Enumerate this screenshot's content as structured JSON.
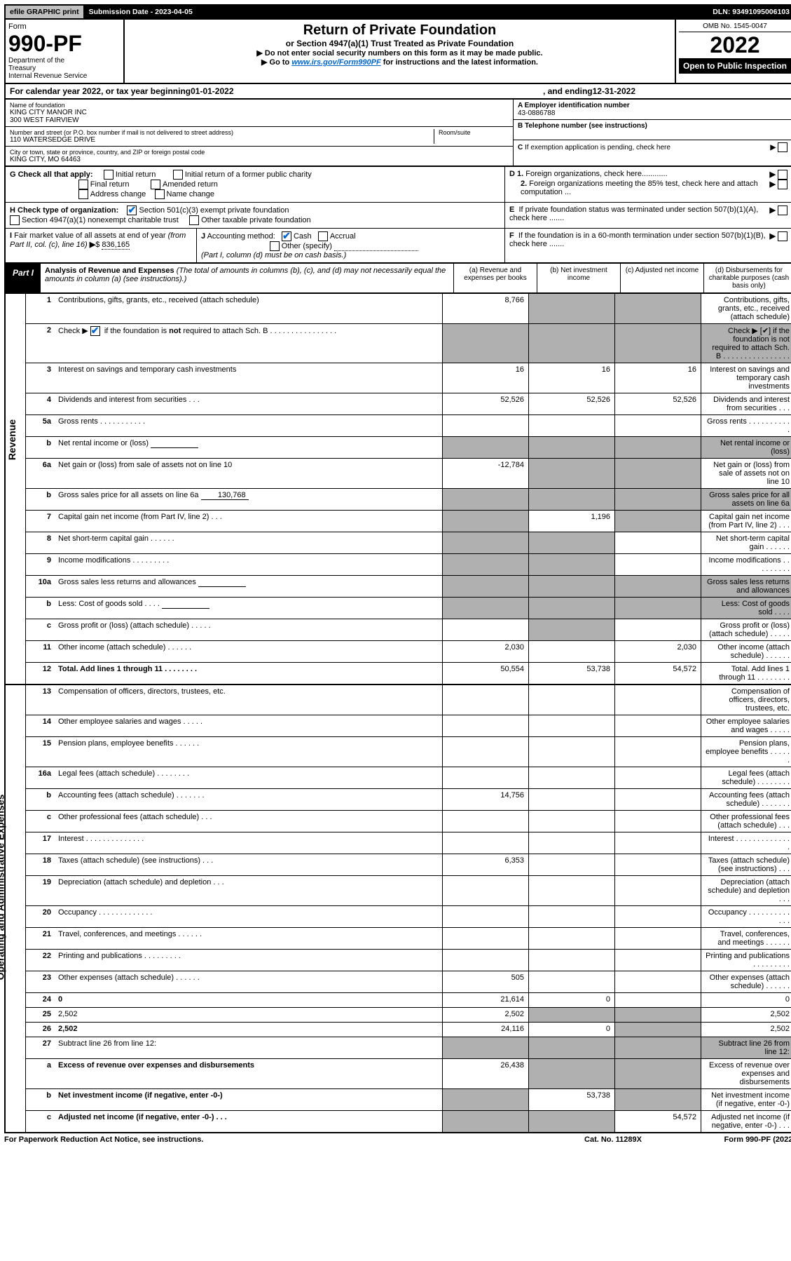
{
  "topbar": {
    "efile": "efile GRAPHIC print",
    "submission": "Submission Date - 2023-04-05",
    "dln": "DLN: 93491095006103"
  },
  "header": {
    "form_label": "Form",
    "form_no": "990-PF",
    "dept": "Department of the Treasury\nInternal Revenue Service",
    "title": "Return of Private Foundation",
    "subtitle": "or Section 4947(a)(1) Trust Treated as Private Foundation",
    "warn1": "▶ Do not enter social security numbers on this form as it may be made public.",
    "warn2_pre": "▶ Go to ",
    "warn2_link": "www.irs.gov/Form990PF",
    "warn2_post": " for instructions and the latest information.",
    "omb": "OMB No. 1545-0047",
    "year": "2022",
    "open": "Open to Public Inspection"
  },
  "cal": {
    "pre": "For calendar year 2022, or tax year beginning ",
    "begin": "01-01-2022",
    "mid": " , and ending ",
    "end": "12-31-2022"
  },
  "info": {
    "name_label": "Name of foundation",
    "name1": "KING CITY MANOR INC",
    "name2": "300 WEST FAIRVIEW",
    "street_label": "Number and street (or P.O. box number if mail is not delivered to street address)",
    "street": "110 WATERSEDGE DRIVE",
    "room_label": "Room/suite",
    "city_label": "City or town, state or province, country, and ZIP or foreign postal code",
    "city": "KING CITY, MO  64463",
    "a_label": "A Employer identification number",
    "a_val": "43-0886788",
    "b_label": "B Telephone number (see instructions)",
    "c_label": "C If exemption application is pending, check here",
    "d1": "D 1. Foreign organizations, check here............",
    "d2": "2. Foreign organizations meeting the 85% test, check here and attach computation ...",
    "e": "E  If private foundation status was terminated under section 507(b)(1)(A), check here .......",
    "f": "F  If the foundation is in a 60-month termination under section 507(b)(1)(B), check here .......",
    "g_label": "G Check all that apply:",
    "g_opts": [
      "Initial return",
      "Final return",
      "Address change",
      "Initial return of a former public charity",
      "Amended return",
      "Name change"
    ],
    "h_label": "H Check type of organization:",
    "h1": "Section 501(c)(3) exempt private foundation",
    "h2": "Section 4947(a)(1) nonexempt charitable trust",
    "h3": "Other taxable private foundation",
    "i_label": "I Fair market value of all assets at end of year (from Part II, col. (c), line 16)",
    "i_val": "836,165",
    "j_label": "J Accounting method:",
    "j_cash": "Cash",
    "j_accrual": "Accrual",
    "j_other": "Other (specify)",
    "j_note": "(Part I, column (d) must be on cash basis.)"
  },
  "part1": {
    "tab": "Part I",
    "title": "Analysis of Revenue and Expenses",
    "note": " (The total of amounts in columns (b), (c), and (d) may not necessarily equal the amounts in column (a) (see instructions).)",
    "col_a": "(a)   Revenue and expenses per books",
    "col_b": "(b)   Net investment income",
    "col_c": "(c)   Adjusted net income",
    "col_d": "(d)   Disbursements for charitable purposes (cash basis only)"
  },
  "rows": [
    {
      "n": "1",
      "d": "Contributions, gifts, grants, etc., received (attach schedule)",
      "a": "8,766",
      "shade": [
        "b",
        "c",
        "d"
      ]
    },
    {
      "n": "2",
      "d": "Check ▶ [✔] if the foundation is not required to attach Sch. B    .  .  .  .  .  .  .  .  .  .  .  .  .  .  .  .",
      "shade": [
        "a",
        "b",
        "c",
        "d"
      ],
      "shade_mode": "all"
    },
    {
      "n": "3",
      "d": "Interest on savings and temporary cash investments",
      "a": "16",
      "b": "16",
      "c": "16",
      "shade": [
        "d"
      ]
    },
    {
      "n": "4",
      "d": "Dividends and interest from securities   .   .   .",
      "a": "52,526",
      "b": "52,526",
      "c": "52,526",
      "shade": [
        "d"
      ]
    },
    {
      "n": "5a",
      "d": "Gross rents   .   .   .   .   .   .   .   .   .   .   .",
      "shade": [
        "d"
      ]
    },
    {
      "n": "b",
      "d": "Net rental income or (loss)",
      "sub": true,
      "shade": [
        "a",
        "b",
        "c",
        "d"
      ],
      "shade_mode": "all"
    },
    {
      "n": "6a",
      "d": "Net gain or (loss) from sale of assets not on line 10",
      "a": "-12,784",
      "shade": [
        "b",
        "c",
        "d"
      ]
    },
    {
      "n": "b",
      "d": "Gross sales price for all assets on line 6a",
      "sub_val": "130,768",
      "shade": [
        "a",
        "b",
        "c",
        "d"
      ],
      "shade_mode": "all"
    },
    {
      "n": "7",
      "d": "Capital gain net income (from Part IV, line 2)   .   .   .",
      "b": "1,196",
      "shade": [
        "a",
        "c",
        "d"
      ]
    },
    {
      "n": "8",
      "d": "Net short-term capital gain   .   .   .   .   .   .",
      "shade": [
        "a",
        "b",
        "d"
      ]
    },
    {
      "n": "9",
      "d": "Income modifications  .   .   .   .   .   .   .   .   .",
      "shade": [
        "a",
        "b",
        "d"
      ]
    },
    {
      "n": "10a",
      "d": "Gross sales less returns and allowances",
      "sub": true,
      "shade": [
        "a",
        "b",
        "c",
        "d"
      ],
      "shade_mode": "all"
    },
    {
      "n": "b",
      "d": "Less: Cost of goods sold    .   .   .   .",
      "sub": true,
      "shade": [
        "a",
        "b",
        "c",
        "d"
      ],
      "shade_mode": "all"
    },
    {
      "n": "c",
      "d": "Gross profit or (loss) (attach schedule)    .   .   .   .   .",
      "shade": [
        "b",
        "d"
      ]
    },
    {
      "n": "11",
      "d": "Other income (attach schedule)    .   .   .   .   .   .",
      "a": "2,030",
      "c": "2,030",
      "shade": [
        "d"
      ]
    },
    {
      "n": "12",
      "d": "Total. Add lines 1 through 11   .   .   .   .   .   .   .   .",
      "a": "50,554",
      "b": "53,738",
      "c": "54,572",
      "bold": true,
      "shade": [
        "d"
      ]
    }
  ],
  "exp_rows": [
    {
      "n": "13",
      "d": "Compensation of officers, directors, trustees, etc."
    },
    {
      "n": "14",
      "d": "Other employee salaries and wages   .   .   .   .   ."
    },
    {
      "n": "15",
      "d": "Pension plans, employee benefits  .   .   .   .   .   ."
    },
    {
      "n": "16a",
      "d": "Legal fees (attach schedule)  .   .   .   .   .   .   .   ."
    },
    {
      "n": "b",
      "d": "Accounting fees (attach schedule)  .   .   .   .   .   .   .",
      "a": "14,756"
    },
    {
      "n": "c",
      "d": "Other professional fees (attach schedule)    .   .   ."
    },
    {
      "n": "17",
      "d": "Interest  .   .   .   .   .   .   .   .   .   .   .   .   .   ."
    },
    {
      "n": "18",
      "d": "Taxes (attach schedule) (see instructions)    .   .   .",
      "a": "6,353"
    },
    {
      "n": "19",
      "d": "Depreciation (attach schedule) and depletion   .   .   .",
      "shade": [
        "d"
      ]
    },
    {
      "n": "20",
      "d": "Occupancy  .   .   .   .   .   .   .   .   .   .   .   .   ."
    },
    {
      "n": "21",
      "d": "Travel, conferences, and meetings  .   .   .   .   .   ."
    },
    {
      "n": "22",
      "d": "Printing and publications  .   .   .   .   .   .   .   .   ."
    },
    {
      "n": "23",
      "d": "Other expenses (attach schedule)  .   .   .   .   .   .",
      "a": "505"
    },
    {
      "n": "24",
      "d": "0",
      "a": "21,614",
      "b": "0",
      "bold": true
    },
    {
      "n": "25",
      "d": "2,502",
      "a": "2,502",
      "shade": [
        "b",
        "c"
      ]
    },
    {
      "n": "26",
      "d": "2,502",
      "a": "24,116",
      "b": "0",
      "bold": true,
      "shade": [
        "c"
      ]
    },
    {
      "n": "27",
      "d": "Subtract line 26 from line 12:",
      "shade": [
        "a",
        "b",
        "c",
        "d"
      ],
      "shade_mode": "all"
    },
    {
      "n": "a",
      "d": "Excess of revenue over expenses and disbursements",
      "a": "26,438",
      "bold": true,
      "shade": [
        "b",
        "c",
        "d"
      ]
    },
    {
      "n": "b",
      "d": "Net investment income (if negative, enter -0-)",
      "b": "53,738",
      "bold": true,
      "shade": [
        "a",
        "c",
        "d"
      ]
    },
    {
      "n": "c",
      "d": "Adjusted net income (if negative, enter -0-)   .   .   .",
      "c": "54,572",
      "bold": true,
      "shade": [
        "a",
        "b",
        "d"
      ]
    }
  ],
  "footer": {
    "left": "For Paperwork Reduction Act Notice, see instructions.",
    "mid": "Cat. No. 11289X",
    "right": "Form 990-PF (2022)"
  },
  "colors": {
    "shade": "#b0b0b0",
    "link": "#0066cc"
  }
}
